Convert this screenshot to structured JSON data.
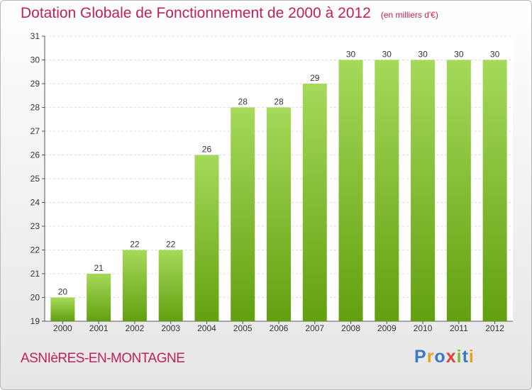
{
  "title": "Dotation Globale de Fonctionnement de 2000 à 2012",
  "subtitle": "(en milliers d'€)",
  "commune": "ASNIèRES-EN-MONTAGNE",
  "logo": {
    "text": "Proxiti",
    "colors": [
      "#3a78c8",
      "#e8a020",
      "#3a78c8",
      "#e0403a",
      "#80b830",
      "#3a78c8",
      "#e8a020"
    ]
  },
  "colors": {
    "bar_light": "#a6d95a",
    "bar_dark": "#62a010",
    "title": "#c0205a",
    "grid": "#dcdcdc"
  },
  "chart_data": {
    "type": "bar",
    "categories": [
      "2000",
      "2001",
      "2002",
      "2003",
      "2004",
      "2005",
      "2006",
      "2007",
      "2008",
      "2009",
      "2010",
      "2011",
      "2012"
    ],
    "values": [
      20,
      21,
      22,
      22,
      26,
      28,
      28,
      29,
      30,
      30,
      30,
      30,
      30
    ],
    "ylim": [
      19,
      31
    ],
    "yticks": [
      19,
      20,
      21,
      22,
      23,
      24,
      25,
      26,
      27,
      28,
      29,
      30,
      31
    ],
    "grid": true,
    "data_labels": true
  }
}
